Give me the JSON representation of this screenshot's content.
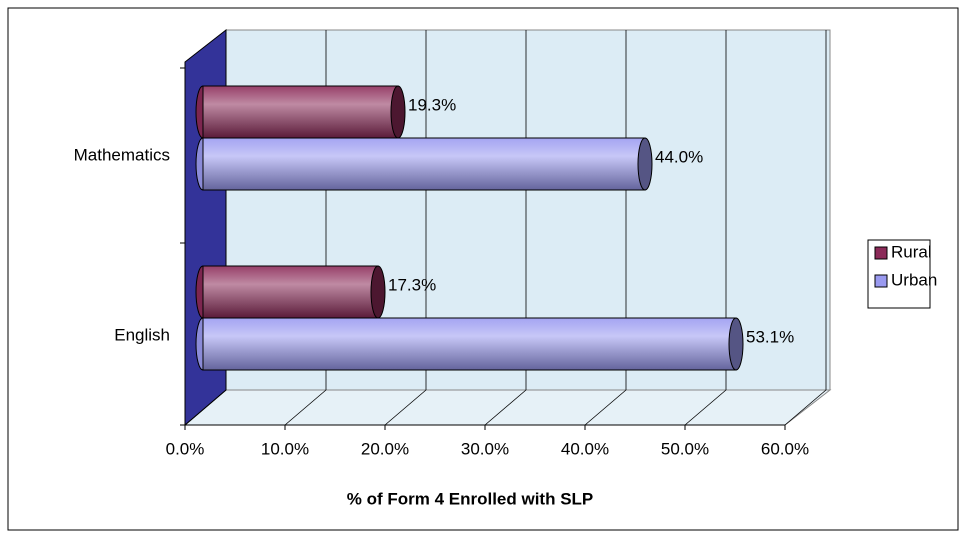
{
  "chart_data": {
    "type": "bar",
    "orientation": "horizontal",
    "categories": [
      "Mathematics",
      "English"
    ],
    "series": [
      {
        "name": "Rural",
        "color": "#8b2a58",
        "values": [
          19.3,
          17.3
        ],
        "value_labels": [
          "19.3%",
          "17.3%"
        ]
      },
      {
        "name": "Urban",
        "color": "#9a9af0",
        "values": [
          44.0,
          53.1
        ],
        "value_labels": [
          "44.0%",
          "53.1%"
        ]
      }
    ],
    "xlim": [
      0,
      60
    ],
    "xticks": [
      {
        "value": 0,
        "label": "0.0%"
      },
      {
        "value": 10,
        "label": "10.0%"
      },
      {
        "value": 20,
        "label": "20.0%"
      },
      {
        "value": 30,
        "label": "30.0%"
      },
      {
        "value": 40,
        "label": "40.0%"
      },
      {
        "value": 50,
        "label": "50.0%"
      },
      {
        "value": 60,
        "label": "60.0%"
      }
    ],
    "x_label": "% of Form 4 Enrolled with SLP",
    "grid": true,
    "legend": "right"
  }
}
